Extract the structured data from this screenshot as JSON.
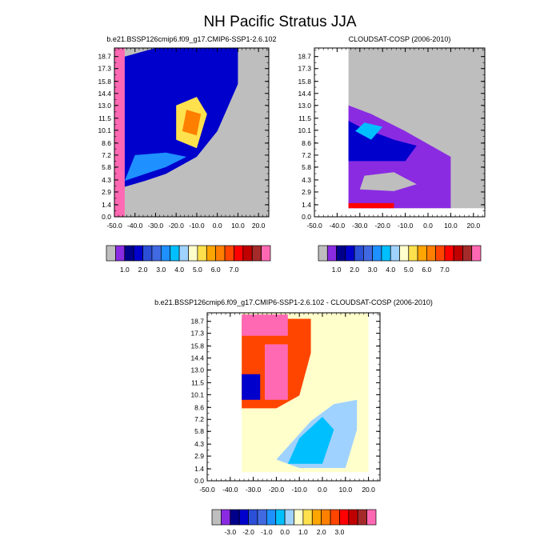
{
  "figure": {
    "title": "NH Pacific Stratus JJA"
  },
  "chart_data": [
    {
      "type": "heatmap",
      "title": "b.e21.BSSP126cmip6.f09_g17.CMIP6-SSP1-2.6.102",
      "x_ticks": [
        "-50.0",
        "-40.0",
        "-30.0",
        "-20.0",
        "-10.0",
        "0.0",
        "10.0",
        "20.0"
      ],
      "y_ticks": [
        "0.0",
        "1.4",
        "2.9",
        "4.3",
        "5.8",
        "7.2",
        "8.6",
        "10.1",
        "11.5",
        "13.0",
        "14.4",
        "15.8",
        "17.3",
        "18.7"
      ],
      "xlim": [
        -50,
        25
      ],
      "ylim": [
        0,
        19.7
      ],
      "colorbar_labels": [
        "1.0",
        "2.0",
        "3.0",
        "4.0",
        "5.0",
        "6.0",
        "7.0"
      ]
    },
    {
      "type": "heatmap",
      "title": "CLOUDSAT-COSP (2006-2010)",
      "x_ticks": [
        "-50.0",
        "-40.0",
        "-30.0",
        "-20.0",
        "-10.0",
        "0.0",
        "10.0",
        "20.0"
      ],
      "y_ticks": [
        "0.0",
        "1.4",
        "2.9",
        "4.3",
        "5.8",
        "7.2",
        "8.6",
        "10.1",
        "11.5",
        "13.0",
        "14.4",
        "15.8",
        "17.3",
        "18.7"
      ],
      "xlim": [
        -50,
        25
      ],
      "ylim": [
        0,
        19.7
      ],
      "colorbar_labels": [
        "1.0",
        "2.0",
        "3.0",
        "4.0",
        "5.0",
        "6.0",
        "7.0"
      ]
    },
    {
      "type": "heatmap",
      "title": "b.e21.BSSP126cmip6.f09_g17.CMIP6-SSP1-2.6.102 - CLOUDSAT-COSP (2006-2010)",
      "x_ticks": [
        "-50.0",
        "-40.0",
        "-30.0",
        "-20.0",
        "-10.0",
        "0.0",
        "10.0",
        "20.0"
      ],
      "y_ticks": [
        "0.0",
        "1.4",
        "2.9",
        "4.3",
        "5.8",
        "7.2",
        "8.6",
        "10.1",
        "11.5",
        "13.0",
        "14.4",
        "15.8",
        "17.3",
        "18.7"
      ],
      "xlim": [
        -50,
        25
      ],
      "ylim": [
        0,
        19.7
      ],
      "colorbar_labels": [
        "-3.0",
        "-2.0",
        "-1.0",
        "0.0",
        "1.0",
        "2.0",
        "3.0"
      ]
    }
  ],
  "colors": {
    "missing": "#bebebe",
    "abs_scale": [
      "#bebebe",
      "#8a2be2",
      "#00008b",
      "#0000cd",
      "#2b4fd6",
      "#4169e1",
      "#1e90ff",
      "#00bfff",
      "#a0d2ff",
      "#ffffcc",
      "#ffe14d",
      "#ffa500",
      "#ff7f00",
      "#ff4500",
      "#ff0000",
      "#c00000",
      "#a52a2a",
      "#ff69b4"
    ],
    "diff_scale": [
      "#bebebe",
      "#8a2be2",
      "#00008b",
      "#0000cd",
      "#2b4fd6",
      "#4169e1",
      "#1e90ff",
      "#00bfff",
      "#a0d2ff",
      "#ffffcc",
      "#ffe14d",
      "#ffa500",
      "#ff7f00",
      "#ff4500",
      "#ff0000",
      "#c00000",
      "#a52a2a",
      "#ff69b4"
    ]
  }
}
